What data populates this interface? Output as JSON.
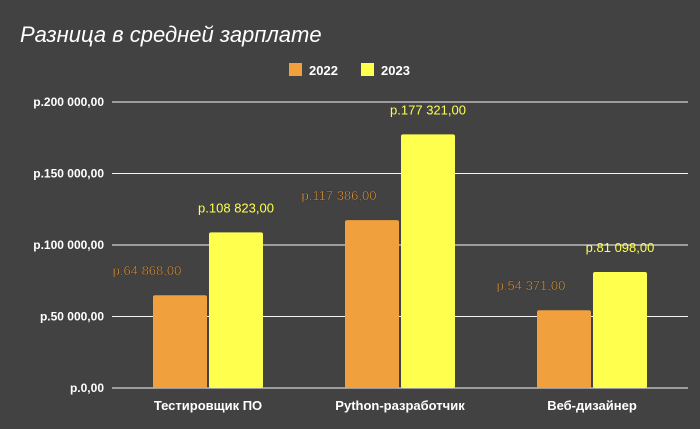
{
  "chart_data": {
    "type": "bar",
    "title": "Разница в средней зарплате",
    "categories": [
      "Тестировщик ПО",
      "Python-разработчик",
      "Веб-дизайнер"
    ],
    "series": [
      {
        "name": "2022",
        "color": "#f0a03c",
        "values": [
          64868,
          117386,
          54371
        ],
        "labels": [
          "р.64 868,00",
          "р.117 386,00",
          "р.54 371,00"
        ]
      },
      {
        "name": "2023",
        "color": "#ffff4d",
        "values": [
          108823,
          177321,
          81098
        ],
        "labels": [
          "р.108 823,00",
          "р.177 321,00",
          "р.81 098,00"
        ]
      }
    ],
    "ylim": [
      0,
      200000
    ],
    "yticks": [
      {
        "value": 0,
        "label": "р.0,00"
      },
      {
        "value": 50000,
        "label": "р.50 000,00"
      },
      {
        "value": 100000,
        "label": "р.100 000,00"
      },
      {
        "value": 150000,
        "label": "р.150 000,00"
      },
      {
        "value": 200000,
        "label": "р.200 000,00"
      }
    ],
    "grid": true,
    "legend_position": "top-center"
  }
}
